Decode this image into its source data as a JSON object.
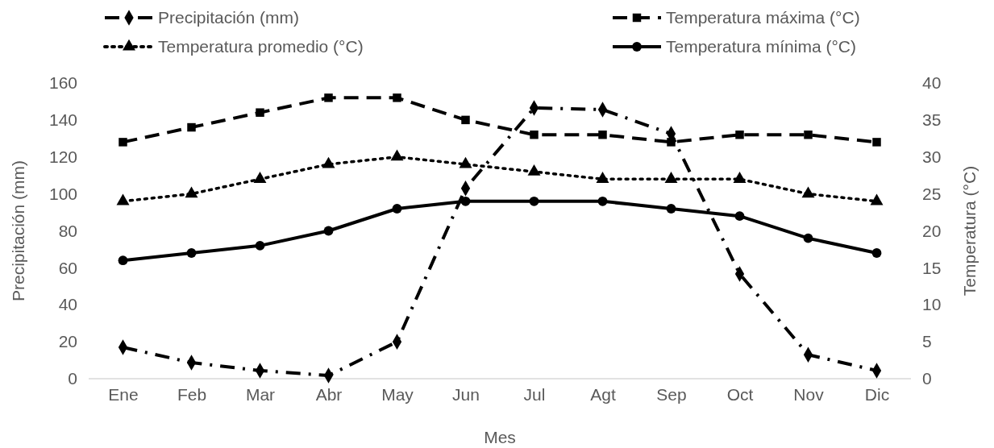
{
  "chart_data": {
    "type": "line",
    "xlabel": "Mes",
    "ylabel": "Precipitación (mm)",
    "y2label": "Temperatura (°C)",
    "categories": [
      "Ene",
      "Feb",
      "Mar",
      "Abr",
      "May",
      "Jun",
      "Jul",
      "Agt",
      "Sep",
      "Oct",
      "Nov",
      "Dic"
    ],
    "ylim": [
      0,
      160
    ],
    "yticks": [
      0,
      20,
      40,
      60,
      80,
      100,
      120,
      140,
      160
    ],
    "y2lim": [
      0,
      40
    ],
    "y2ticks": [
      0,
      5,
      10,
      15,
      20,
      25,
      30,
      35,
      40
    ],
    "legend": "top",
    "grid": false,
    "series": [
      {
        "name": "Precipitación (mm)",
        "color": "#000000",
        "marker": "diamond",
        "line_style": "dashdot",
        "values": [
          17,
          8.7,
          4.4,
          1.7,
          20,
          103,
          146.5,
          145.6,
          132.5,
          56.7,
          13,
          4.4
        ]
      },
      {
        "name": "Temperatura máxima (°C)",
        "color": "#000000",
        "marker": "square",
        "line_style": "dashed",
        "axis": "y2",
        "values": [
          32,
          34,
          36,
          38,
          38,
          35,
          33,
          33,
          32,
          33,
          33,
          32
        ]
      },
      {
        "name": "Temperatura promedio (°C)",
        "color": "#000000",
        "marker": "triangle",
        "line_style": "dotted",
        "axis": "y2",
        "values": [
          24,
          25,
          27,
          29,
          30,
          29,
          28,
          27,
          27,
          27,
          25,
          24
        ]
      },
      {
        "name": "Temperatura mínima (°C)",
        "color": "#000000",
        "marker": "circle",
        "line_style": "solid",
        "axis": "y2",
        "values": [
          16,
          17,
          18,
          20,
          23,
          24,
          24,
          24,
          23,
          22,
          19,
          17
        ]
      }
    ]
  }
}
